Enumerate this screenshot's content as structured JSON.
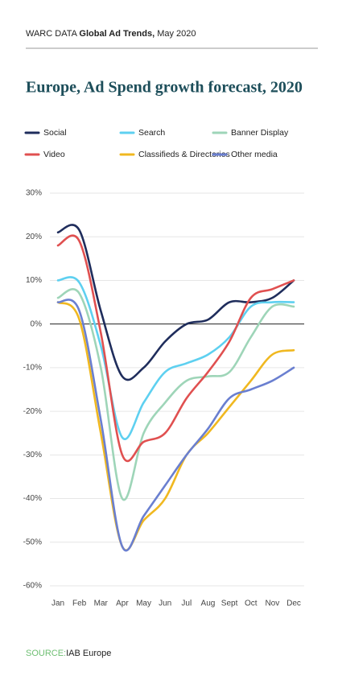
{
  "header": {
    "brand": "WARC DATA",
    "product": "Global Ad Trends,",
    "date": "May 2020"
  },
  "source": {
    "label": "SOURCE:",
    "text": "IAB Europe"
  },
  "chart_data": {
    "type": "line",
    "title": "Europe, Ad Spend growth forecast, 2020",
    "categories": [
      "Jan",
      "Feb",
      "Mar",
      "Apr",
      "May",
      "Jun",
      "Jul",
      "Aug",
      "Sept",
      "Oct",
      "Nov",
      "Dec"
    ],
    "series": [
      {
        "name": "Social",
        "color": "#1f2d5c",
        "values": [
          21,
          21.5,
          3,
          -12,
          -10,
          -4,
          0,
          1,
          5,
          5,
          6,
          10
        ]
      },
      {
        "name": "Search",
        "color": "#5ed0f0",
        "values": [
          10,
          9.5,
          -5,
          -26,
          -18,
          -11,
          -9,
          -7,
          -3,
          4,
          5,
          5
        ]
      },
      {
        "name": "Banner Display",
        "color": "#9ed5b8",
        "values": [
          6,
          7,
          -10,
          -40,
          -25,
          -18,
          -13,
          -12,
          -11,
          -3,
          4,
          4
        ]
      },
      {
        "name": "Video",
        "color": "#e05050",
        "values": [
          18,
          19,
          -2,
          -30,
          -27,
          -25,
          -17,
          -11,
          -4,
          6,
          8,
          10
        ]
      },
      {
        "name": "Classifieds & Directories",
        "color": "#f0b820",
        "values": [
          5,
          1,
          -25,
          -51,
          -45,
          -40,
          -30,
          -25,
          -19,
          -13,
          -7,
          -6
        ]
      },
      {
        "name": "Other media",
        "color": "#6a7fd0",
        "values": [
          5,
          3,
          -22,
          -51,
          -44,
          -37,
          -30,
          -24,
          -17,
          -15,
          -13,
          -10
        ]
      }
    ],
    "ylim": [
      -60,
      30
    ],
    "yticks": [
      {
        "value": -60,
        "label": "-60%"
      },
      {
        "value": -50,
        "label": "-50%"
      },
      {
        "value": -40,
        "label": "-40%"
      },
      {
        "value": -30,
        "label": "-30%"
      },
      {
        "value": -20,
        "label": "-20%"
      },
      {
        "value": -10,
        "label": "-10%"
      },
      {
        "value": 0,
        "label": "0%"
      },
      {
        "value": 10,
        "label": "10%"
      },
      {
        "value": 20,
        "label": "20%"
      },
      {
        "value": 30,
        "label": "30%"
      }
    ],
    "grid": true
  }
}
